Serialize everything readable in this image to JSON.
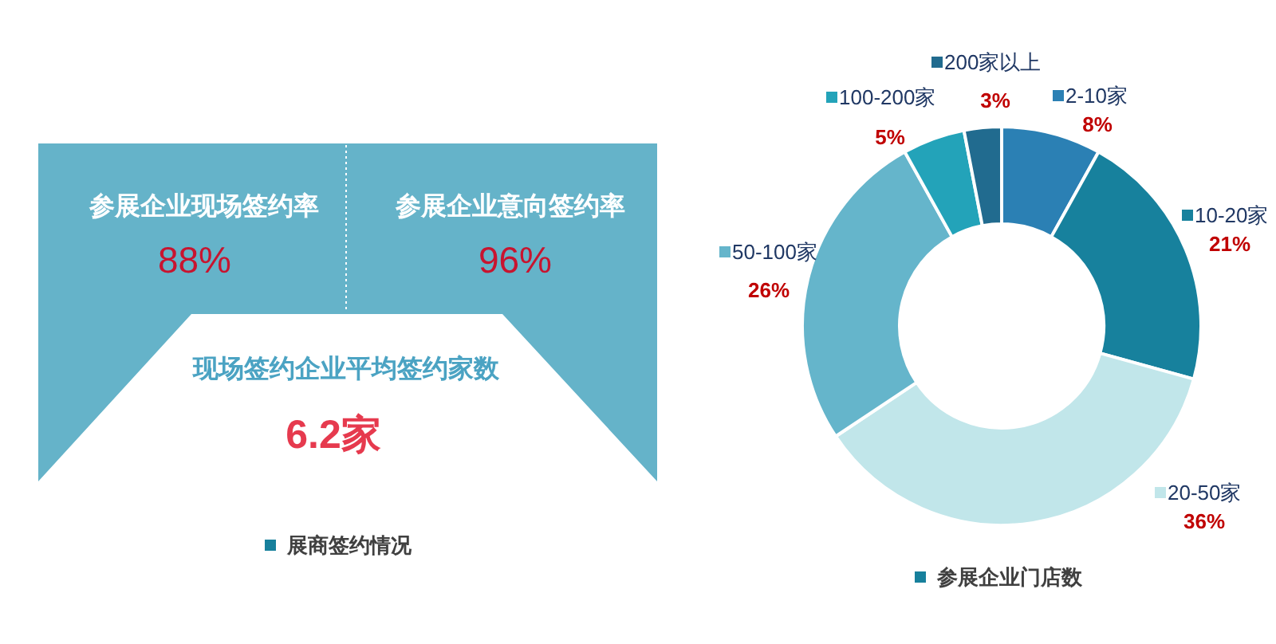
{
  "chart_data": [
    {
      "type": "other",
      "title": "展商签约情况",
      "annotations": [
        "参展企业现场签约率",
        "88%",
        "参展企业意向签约率",
        "96%",
        "现场签约企业平均签约家数",
        "6.2家"
      ]
    },
    {
      "type": "donut",
      "title": "参展企业门店数",
      "categories": [
        "2-10家",
        "10-20家",
        "20-50家",
        "50-100家",
        "100-200家",
        "200家以上"
      ],
      "values": [
        8,
        21,
        36,
        26,
        5,
        3
      ],
      "value_labels": [
        "8%",
        "21%",
        "36%",
        "26%",
        "5%",
        "3%"
      ],
      "colors": [
        "#2b80b4",
        "#17819d",
        "#c1e6ea",
        "#65b5cb",
        "#23a3b9",
        "#216b8f"
      ],
      "legend": "top"
    }
  ]
}
